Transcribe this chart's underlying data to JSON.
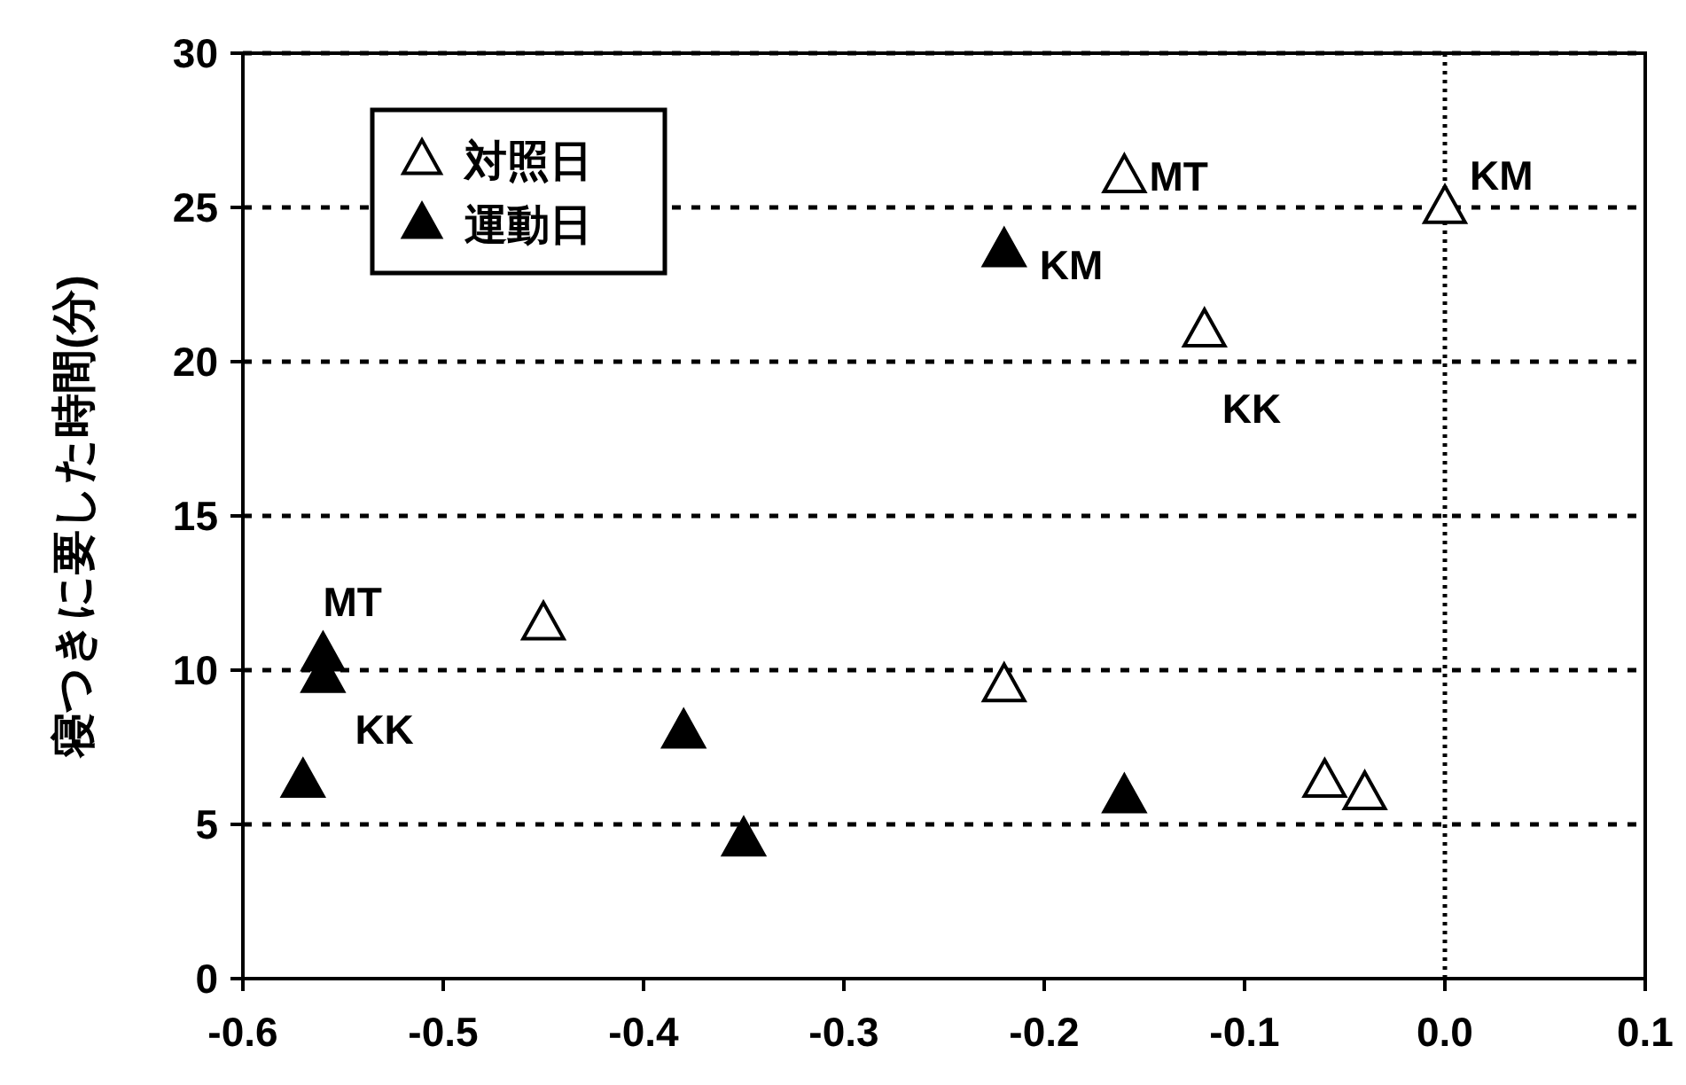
{
  "chart_data": {
    "type": "scatter",
    "ylabel": "寝つきに要した時間(分)",
    "xlim": [
      -0.6,
      0.1
    ],
    "xticks": [
      {
        "value": -0.6,
        "label": "-0.6"
      },
      {
        "value": -0.5,
        "label": "-0.5"
      },
      {
        "value": -0.4,
        "label": "-0.4"
      },
      {
        "value": -0.3,
        "label": "-0.3"
      },
      {
        "value": -0.2,
        "label": "-0.2"
      },
      {
        "value": -0.1,
        "label": "-0.1"
      },
      {
        "value": 0,
        "label": "0.0"
      },
      {
        "value": 0.1,
        "label": "0.1"
      }
    ],
    "ylim": [
      0,
      30
    ],
    "yticks": [
      0,
      5,
      10,
      15,
      20,
      25,
      30
    ],
    "grid": "y",
    "legend": "top left",
    "marker": "triangle",
    "series": [
      {
        "name": "対照日",
        "color": "#000000",
        "x": [
          0.0,
          -0.16,
          -0.12,
          -0.45,
          -0.22,
          -0.06,
          -0.04
        ],
        "values": [
          25,
          26,
          21,
          11.5,
          9.5,
          6.4,
          6
        ]
      },
      {
        "name": "運動日",
        "color": "#000000",
        "x": [
          -0.22,
          -0.56,
          -0.56,
          -0.57,
          -0.38,
          -0.35,
          -0.16
        ],
        "values": [
          23.6,
          10.5,
          9.8,
          6.4,
          8,
          4.5,
          5.9
        ]
      }
    ],
    "ref_lines": [
      {
        "axis": "x",
        "value": 0,
        "line_style": "dotted",
        "color": "#000000"
      }
    ],
    "annotations": [
      {
        "text": "MT",
        "x": -0.16,
        "y": 26
      },
      {
        "text": "KM",
        "x": 0.0,
        "y": 25
      },
      {
        "text": "KK",
        "x": -0.12,
        "y": 21
      },
      {
        "text": "KM",
        "x": -0.22,
        "y": 23.6
      },
      {
        "text": "MT",
        "x": -0.56,
        "y": 10.5
      },
      {
        "text": "KK",
        "x": -0.56,
        "y": 9.8
      }
    ]
  }
}
